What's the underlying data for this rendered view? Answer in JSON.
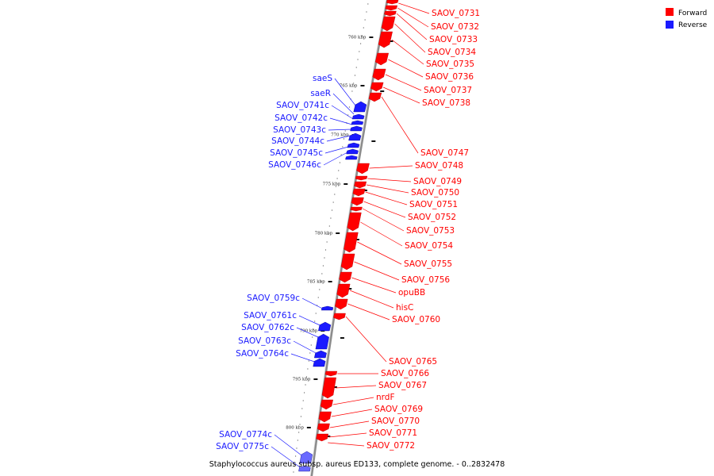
{
  "genome": {
    "title": "Staphylococcus aureus subsp. aureus ED133, complete genome. - 0..2832478"
  },
  "legend": [
    {
      "label": "Forward",
      "color": "#ff0000"
    },
    {
      "label": "Reverse",
      "color": "#1a1aff"
    }
  ],
  "colors": {
    "forward": "#ff0000",
    "reverse": "#1a1aff",
    "backbone": "#8c8c8c"
  },
  "ticks": [
    "760 kbp",
    "765 kbp",
    "770 kbp",
    "775 kbp",
    "780 kbp",
    "785 kbp",
    "790 kbp",
    "795 kbp",
    "800 kbp"
  ],
  "forward_genes": [
    "SAOV_0731",
    "SAOV_0732",
    "SAOV_0733",
    "SAOV_0734",
    "SAOV_0735",
    "SAOV_0736",
    "SAOV_0737",
    "SAOV_0738",
    "SAOV_0747",
    "SAOV_0748",
    "SAOV_0749",
    "SAOV_0750",
    "SAOV_0751",
    "SAOV_0752",
    "SAOV_0753",
    "SAOV_0754",
    "SAOV_0755",
    "SAOV_0756",
    "opuBB",
    "hisC",
    "SAOV_0760",
    "SAOV_0765",
    "SAOV_0766",
    "SAOV_0767",
    "nrdF",
    "SAOV_0769",
    "SAOV_0770",
    "SAOV_0771",
    "SAOV_0772"
  ],
  "reverse_genes": [
    "saeS",
    "saeR",
    "SAOV_0741c",
    "SAOV_0742c",
    "SAOV_0743c",
    "SAOV_0744c",
    "SAOV_0745c",
    "SAOV_0746c",
    "SAOV_0759c",
    "SAOV_0761c",
    "SAOV_0762c",
    "SAOV_0763c",
    "SAOV_0764c",
    "SAOV_0774c",
    "SAOV_0775c"
  ]
}
